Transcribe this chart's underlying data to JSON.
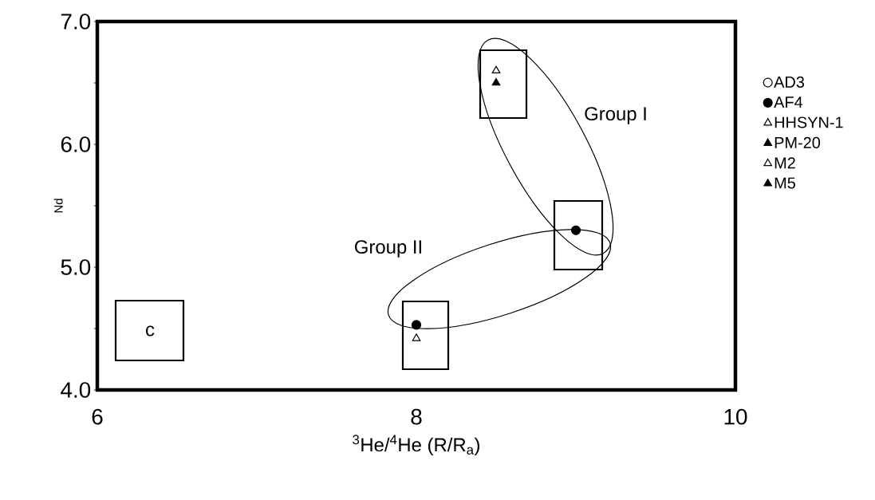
{
  "chart_data": {
    "type": "scatter",
    "xlabel": "$^{3}$He/$^{4}$He (R/R$_{a}$)",
    "ylabel": "Nd",
    "xlim": [
      6,
      10
    ],
    "ylim": [
      4,
      7
    ],
    "xticks": [
      6,
      8,
      10
    ],
    "yticks": [
      {
        "value": 4,
        "label": "4.0"
      },
      {
        "value": 4.5,
        "label": null
      },
      {
        "value": 5,
        "label": "5.0"
      },
      {
        "value": 5.5,
        "label": null
      },
      {
        "value": 6,
        "label": "6.0"
      },
      {
        "value": 6.5,
        "label": null
      },
      {
        "value": 7,
        "label": "7.0"
      }
    ],
    "legend": "right",
    "grid": false,
    "series": [
      {
        "name": "AD3",
        "color": "#ffffff",
        "marker": "circle"
      },
      {
        "name": "AF4",
        "color": "#000000",
        "marker": "circle",
        "x": [
          8.0,
          9.0
        ],
        "values": [
          4.53,
          5.3
        ]
      },
      {
        "name": "HHSYN-1",
        "color": "#ffffff",
        "marker": "triangle",
        "x": [
          8.0
        ],
        "values": [
          4.42
        ]
      },
      {
        "name": "PM-20",
        "color": "#000000",
        "marker": "triangle"
      },
      {
        "name": "M2",
        "color": "#ffffff",
        "marker": "triangle",
        "x": [
          8.5
        ],
        "values": [
          6.6
        ]
      },
      {
        "name": "M5",
        "color": "#000000",
        "marker": "triangle",
        "x": [
          8.5
        ],
        "values": [
          6.5
        ]
      }
    ],
    "annotations": [
      "Group I",
      "Group II",
      "c"
    ]
  }
}
